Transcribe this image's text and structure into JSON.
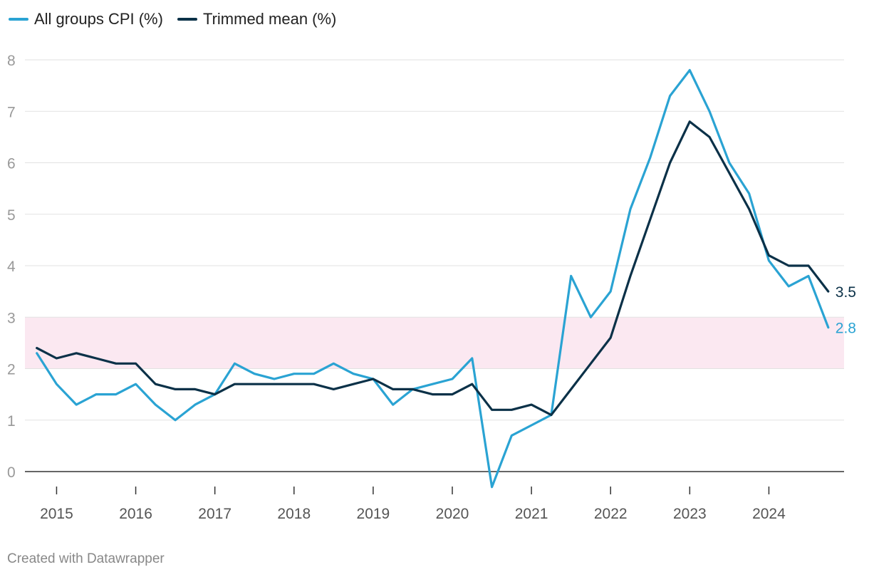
{
  "chart_data": {
    "type": "line",
    "title": "",
    "xlabel": "",
    "ylabel": "",
    "ylim": [
      0,
      8
    ],
    "yticks": [
      0,
      1,
      2,
      3,
      4,
      5,
      6,
      7,
      8
    ],
    "xlim": [
      2014.6,
      2024.95
    ],
    "xticks": [
      2015,
      2016,
      2017,
      2018,
      2019,
      2020,
      2021,
      2022,
      2023,
      2024
    ],
    "grid": true,
    "legend_position": "top-left",
    "target_band": {
      "from": 2,
      "to": 3,
      "color": "#fbe8f1"
    },
    "x": [
      2014.75,
      2015.0,
      2015.25,
      2015.5,
      2015.75,
      2016.0,
      2016.25,
      2016.5,
      2016.75,
      2017.0,
      2017.25,
      2017.5,
      2017.75,
      2018.0,
      2018.25,
      2018.5,
      2018.75,
      2019.0,
      2019.25,
      2019.5,
      2019.75,
      2020.0,
      2020.25,
      2020.5,
      2020.75,
      2021.0,
      2021.25,
      2021.5,
      2021.75,
      2022.0,
      2022.25,
      2022.5,
      2022.75,
      2023.0,
      2023.25,
      2023.5,
      2023.75,
      2024.0,
      2024.25,
      2024.5,
      2024.75
    ],
    "series": [
      {
        "name": "All groups CPI (%)",
        "color": "#2aa3d3",
        "end_label": "2.8",
        "values": [
          2.3,
          1.7,
          1.3,
          1.5,
          1.5,
          1.7,
          1.3,
          1.0,
          1.3,
          1.5,
          2.1,
          1.9,
          1.8,
          1.9,
          1.9,
          2.1,
          1.9,
          1.8,
          1.3,
          1.6,
          1.7,
          1.8,
          2.2,
          -0.3,
          0.7,
          0.9,
          1.1,
          3.8,
          3.0,
          3.5,
          5.1,
          6.1,
          7.3,
          7.8,
          7.0,
          6.0,
          5.4,
          4.1,
          3.6,
          3.8,
          2.8
        ]
      },
      {
        "name": "Trimmed mean (%)",
        "color": "#0b3148",
        "end_label": "3.5",
        "values": [
          2.4,
          2.2,
          2.3,
          2.2,
          2.1,
          2.1,
          1.7,
          1.6,
          1.6,
          1.5,
          1.7,
          1.7,
          1.7,
          1.7,
          1.7,
          1.6,
          1.7,
          1.8,
          1.6,
          1.6,
          1.5,
          1.5,
          1.7,
          1.2,
          1.2,
          1.3,
          1.1,
          1.6,
          2.1,
          2.6,
          3.8,
          4.9,
          6.0,
          6.8,
          6.5,
          5.8,
          5.1,
          4.2,
          4.0,
          4.0,
          3.5
        ]
      }
    ]
  },
  "footer": {
    "credit": "Created with Datawrapper"
  }
}
